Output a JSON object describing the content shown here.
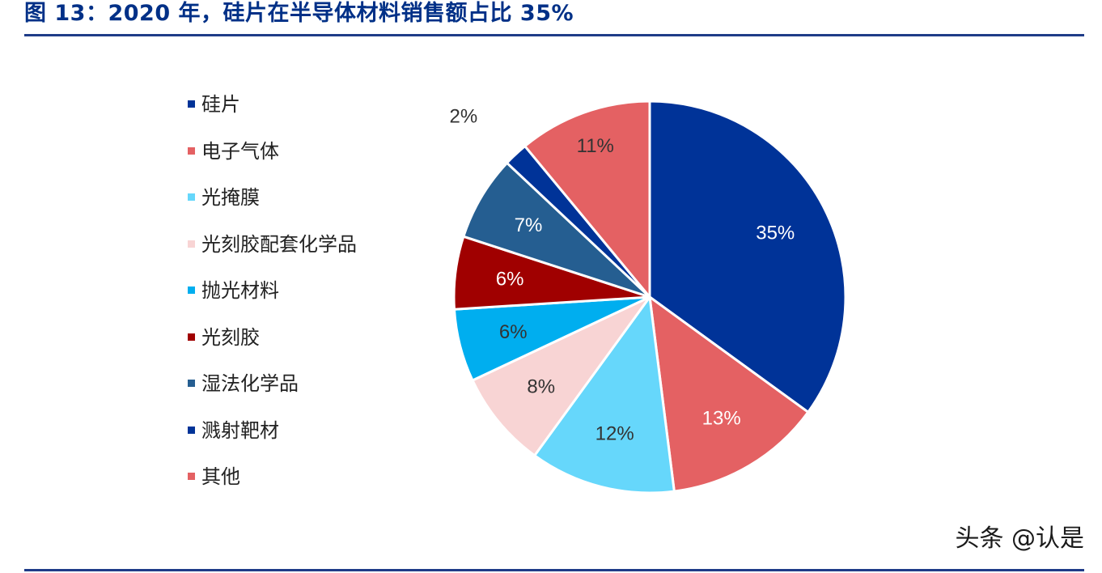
{
  "header": {
    "title": "图 13：2020 年，硅片在半导体材料销售额占比 35%"
  },
  "watermark": {
    "text": "头条 @认是"
  },
  "chart_data": {
    "type": "pie",
    "title": "",
    "start_angle_deg": 0,
    "direction": "clockwise",
    "legend_position": "left",
    "slices": [
      {
        "name": "硅片",
        "value": 35,
        "label": "35%",
        "color": "#003398",
        "label_color": "#ffffff"
      },
      {
        "name": "电子气体",
        "value": 13,
        "label": "13%",
        "color": "#E46163",
        "label_color": "#ffffff"
      },
      {
        "name": "光掩膜",
        "value": 12,
        "label": "12%",
        "color": "#66D7FB",
        "label_color": "#333333"
      },
      {
        "name": "光刻胶配套化学品",
        "value": 8,
        "label": "8%",
        "color": "#F8D4D4",
        "label_color": "#333333"
      },
      {
        "name": "抛光材料",
        "value": 6,
        "label": "6%",
        "color": "#00AEEF",
        "label_color": "#333333"
      },
      {
        "name": "光刻胶",
        "value": 6,
        "label": "6%",
        "color": "#A00000",
        "label_color": "#ffffff"
      },
      {
        "name": "湿法化学品",
        "value": 7,
        "label": "7%",
        "color": "#255E91",
        "label_color": "#ffffff"
      },
      {
        "name": "溅射靶材",
        "value": 2,
        "label": "2%",
        "color": "#003398",
        "label_color": "#333333"
      },
      {
        "name": "其他",
        "value": 11,
        "label": "11%",
        "color": "#E46163",
        "label_color": "#333333"
      }
    ]
  }
}
